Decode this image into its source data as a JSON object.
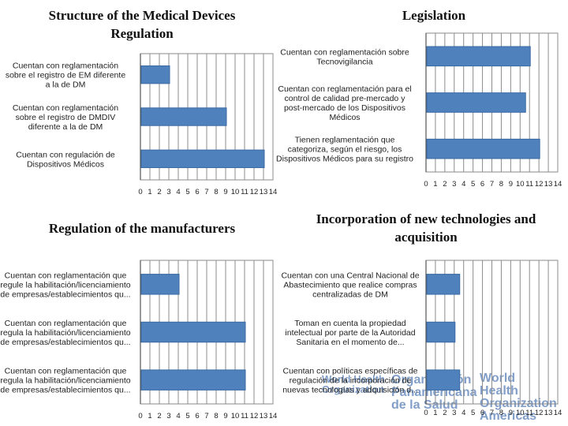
{
  "logos": {
    "who_emblem": "World Health\nOrganization",
    "ops_text": "Organización\nPanamericana\nde la Salud",
    "who_text": "World Health\nOrganization\nAmericas"
  },
  "chart_data": [
    {
      "type": "bar",
      "orientation": "horizontal",
      "title": "Structure of the Medical Devices\nRegulation",
      "categories": [
        "Cuentan con reglamentación\nsobre el registro de EM diferente\na la de DM",
        "Cuentan con reglamentación\nsobre el registro de DMDIV\ndiferente a la de DM",
        "Cuentan con regulación de\nDispositivos Médicos"
      ],
      "values": [
        3,
        9,
        13
      ],
      "ticks": [
        "0",
        "1",
        "2",
        "3",
        "4",
        "5",
        "6",
        "7",
        "8",
        "9",
        "10",
        "11",
        "12",
        "13",
        "14"
      ],
      "xlim": [
        0,
        14
      ],
      "grid": true,
      "bar_color": "#4f81bd"
    },
    {
      "type": "bar",
      "orientation": "horizontal",
      "title": "Legislation",
      "categories": [
        "Cuentan con reglamentación sobre\nTecnovigilancia",
        "Cuentan con reglamentación para el\ncontrol de calidad pre-mercado y\npost-mercado de los Dispositivos\nMédicos",
        "Tienen reglamentación que\ncategoriza, según el riesgo, los\nDispositivos Médicos para su registro"
      ],
      "values": [
        11,
        10.5,
        12
      ],
      "ticks": [
        "0",
        "1",
        "2",
        "3",
        "4",
        "5",
        "6",
        "7",
        "8",
        "9",
        "10",
        "11",
        "12",
        "13",
        "14"
      ],
      "xlim": [
        0,
        14
      ],
      "grid": true,
      "bar_color": "#4f81bd"
    },
    {
      "type": "bar",
      "orientation": "horizontal",
      "title": "Regulation of the manufacturers",
      "categories": [
        "Cuentan con reglamentación que\nregule la habilitación/licenciamiento\nde empresas/establecimientos qu...",
        "Cuentan con reglamentación que\nregula la habilitación/licenciamiento\nde empresas/establecimientos qu...",
        "Cuentan con reglamentación que\nregula la habilitación/licenciamiento\nde empresas/establecimientos qu..."
      ],
      "values": [
        4,
        11,
        11
      ],
      "ticks": [
        "0",
        "1",
        "2",
        "3",
        "4",
        "5",
        "6",
        "7",
        "8",
        "9",
        "10",
        "11",
        "12",
        "13",
        "14"
      ],
      "xlim": [
        0,
        14
      ],
      "grid": true,
      "bar_color": "#4f81bd"
    },
    {
      "type": "bar",
      "orientation": "horizontal",
      "title": "Incorporation of new technologies and\nacquisition",
      "categories": [
        "Cuentan con una Central Nacional de\nAbastecimiento que realice compras\ncentralizadas de DM",
        "Toman en cuenta la propiedad\nintelectual por parte de la Autoridad\nSanitaria en el momento de...",
        "Cuentan con políticas específicas de\nregulación de la incorporación de\nnuevas tecnologías y adquisición d..."
      ],
      "values": [
        3.5,
        3,
        3.5
      ],
      "ticks": [
        "0",
        "1",
        "2",
        "3",
        "4",
        "5",
        "6",
        "7",
        "8",
        "9",
        "10",
        "11",
        "12",
        "13",
        "14"
      ],
      "xlim": [
        0,
        14
      ],
      "grid": true,
      "bar_color": "#4f81bd"
    }
  ]
}
